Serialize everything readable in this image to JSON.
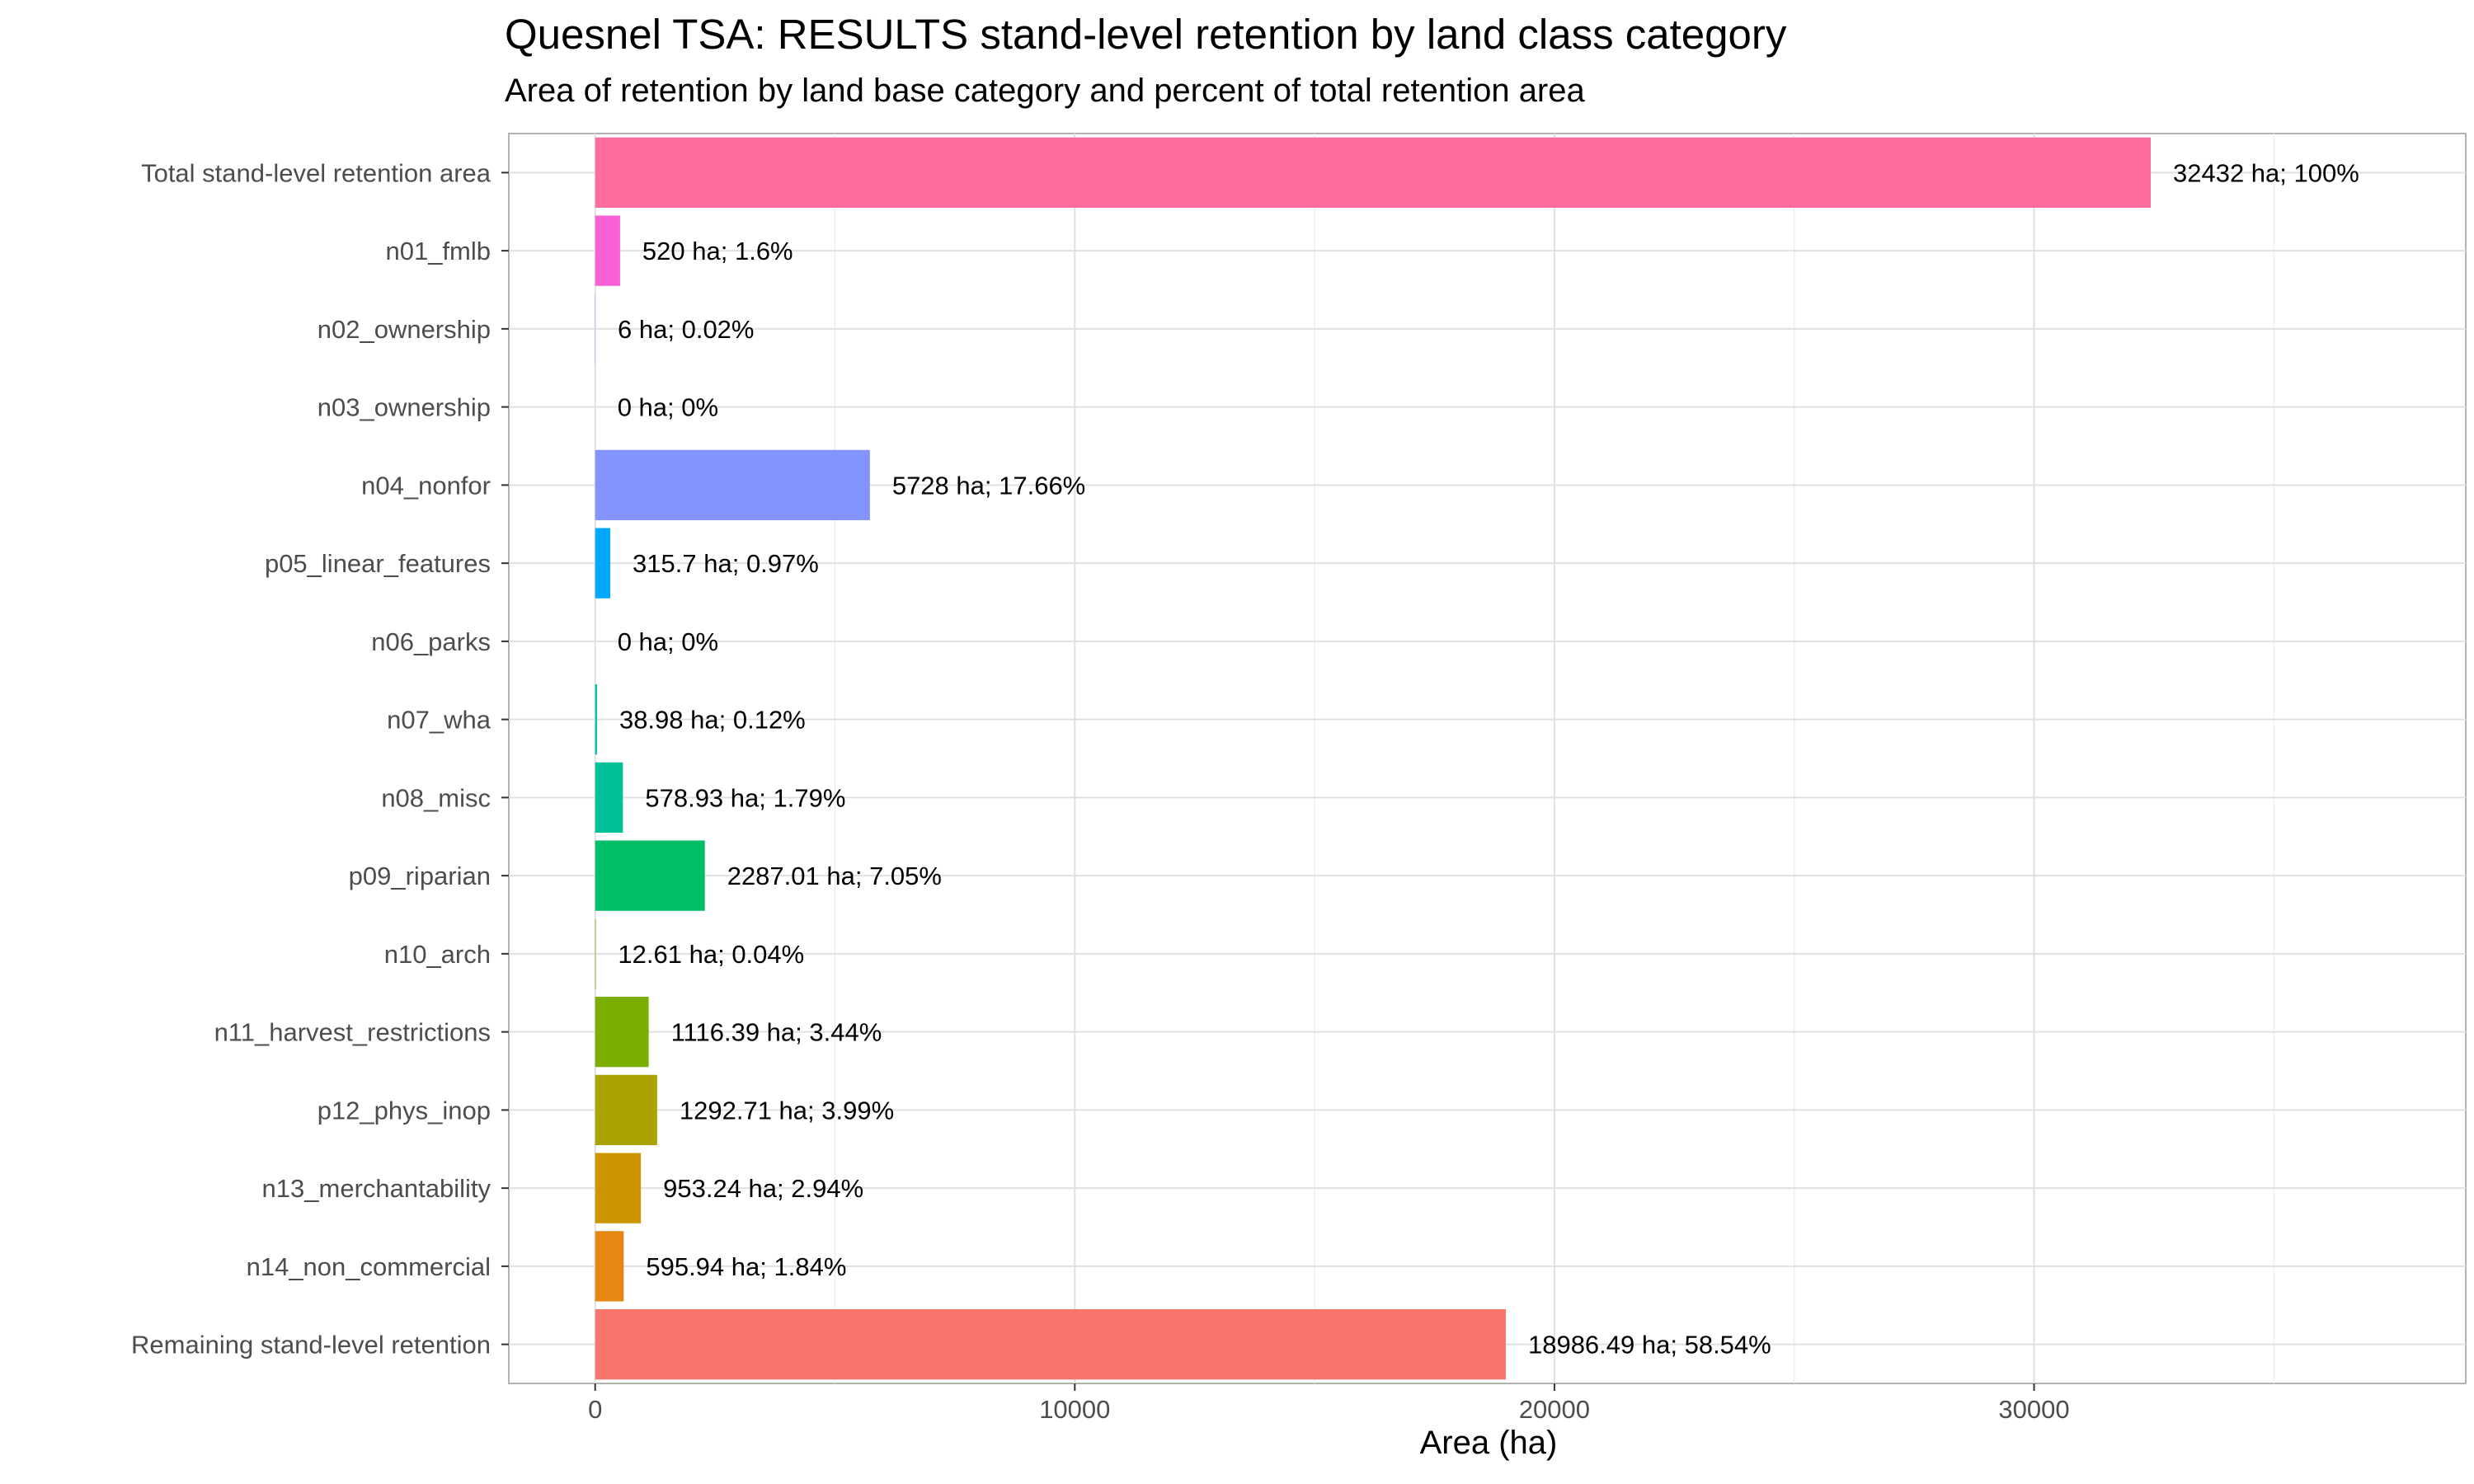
{
  "title": "Quesnel TSA: RESULTS stand-level retention by land class category",
  "subtitle": "Area of retention by land base category and percent of total retention area",
  "chart_data": {
    "type": "bar",
    "orientation": "horizontal",
    "title": "Quesnel TSA: RESULTS stand-level retention by land class category",
    "subtitle": "Area of retention by land base category and percent of total retention area",
    "xlabel": "Area (ha)",
    "ylabel": "",
    "xlim": [
      -1800,
      39000
    ],
    "xticks": [
      0,
      10000,
      20000,
      30000
    ],
    "xtick_labels": [
      "0",
      "10000",
      "20000",
      "30000"
    ],
    "grid": true,
    "legend": "none",
    "categories": [
      "Total stand-level retention area",
      "n01_fmlb",
      "n02_ownership",
      "n03_ownership",
      "n04_nonfor",
      "p05_linear_features",
      "n06_parks",
      "n07_wha",
      "n08_misc",
      "p09_riparian",
      "n10_arch",
      "n11_harvest_restrictions",
      "p12_phys_inop",
      "n13_merchantability",
      "n14_non_commercial",
      "Remaining stand-level retention"
    ],
    "values": [
      32432,
      520,
      6,
      0,
      5728,
      315.7,
      0,
      38.98,
      578.93,
      2287.01,
      12.61,
      1116.39,
      1292.71,
      953.24,
      595.94,
      18986.49
    ],
    "labels": [
      "32432 ha; 100%",
      "520 ha; 1.6%",
      "6 ha; 0.02%",
      "0 ha; 0%",
      "5728 ha; 17.66%",
      "315.7 ha; 0.97%",
      "0 ha; 0%",
      "38.98 ha; 0.12%",
      "578.93 ha; 1.79%",
      "2287.01 ha; 7.05%",
      "12.61 ha; 0.04%",
      "1116.39 ha; 3.44%",
      "1292.71 ha; 3.99%",
      "953.24 ha; 2.94%",
      "595.94 ha; 1.84%",
      "18986.49 ha; 58.54%"
    ],
    "colors": [
      "#FF6C9F",
      "#FB61D7",
      "#DC71FA",
      "#C77CFF",
      "#8494FF",
      "#00A9FF",
      "#00B8E7",
      "#00C0AF",
      "#00C19A",
      "#00BE67",
      "#7CAE00",
      "#7CAE00",
      "#ABA300",
      "#CD9600",
      "#E68613",
      "#F8766D"
    ]
  }
}
